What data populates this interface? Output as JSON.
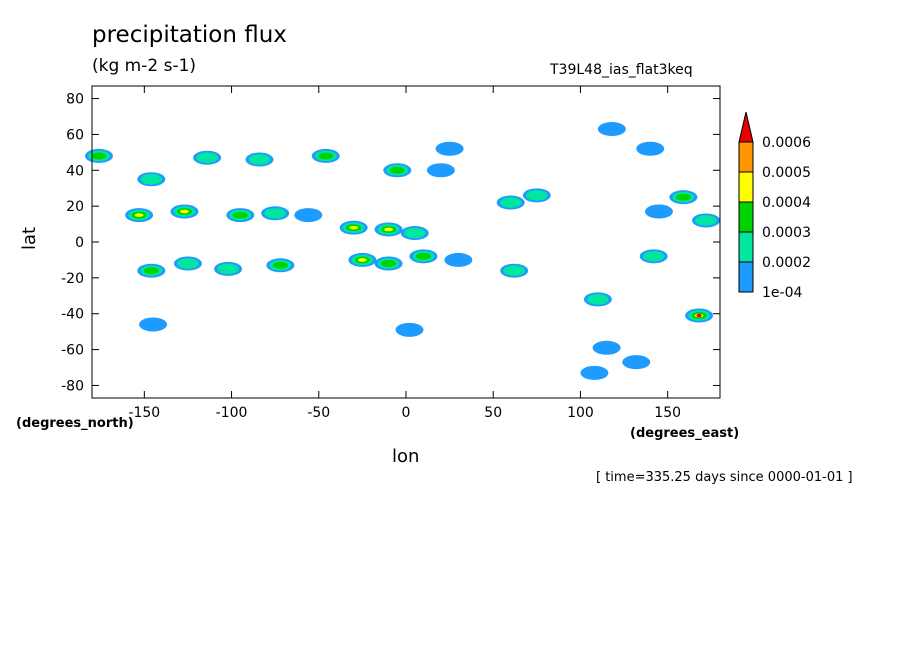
{
  "header": {
    "title": "precipitation flux",
    "units": "(kg m-2 s-1)",
    "run_name": "T39L48_ias_flat3keq",
    "timestamp": "[ time=335.25 days since 0000-01-01 ]"
  },
  "axes": {
    "ylabel": "lat",
    "xlabel": "lon",
    "y_units": "(degrees_north)",
    "x_units": "(degrees_east)"
  },
  "colors": {
    "c1": "#1e9bff",
    "c2": "#00e6a0",
    "c3": "#00d200",
    "c4": "#ffff00",
    "c5": "#ff9600",
    "c6": "#e60000"
  },
  "chart_data": {
    "type": "heatmap",
    "title": "precipitation flux",
    "subtitle": "(kg m-2 s-1)",
    "xlabel": "lon",
    "ylabel": "lat",
    "xlim": [
      -180,
      180
    ],
    "ylim": [
      -87,
      87
    ],
    "x_ticks": [
      -150,
      -100,
      -50,
      0,
      50,
      100,
      150
    ],
    "y_ticks": [
      -80,
      -60,
      -40,
      -20,
      0,
      20,
      40,
      60,
      80
    ],
    "colorbar_labels": [
      "1e-04",
      "0.0002",
      "0.0003",
      "0.0004",
      "0.0005",
      "0.0006"
    ],
    "blobs": [
      {
        "lon": -176,
        "lat": 48,
        "level": 3
      },
      {
        "lon": -146,
        "lat": 35,
        "level": 2
      },
      {
        "lon": -114,
        "lat": 47,
        "level": 2
      },
      {
        "lon": -84,
        "lat": 46,
        "level": 2
      },
      {
        "lon": -46,
        "lat": 48,
        "level": 3
      },
      {
        "lon": -5,
        "lat": 40,
        "level": 3
      },
      {
        "lon": 25,
        "lat": 52,
        "level": 1
      },
      {
        "lon": 20,
        "lat": 40,
        "level": 1
      },
      {
        "lon": 60,
        "lat": 22,
        "level": 2
      },
      {
        "lon": 75,
        "lat": 26,
        "level": 2
      },
      {
        "lon": 118,
        "lat": 63,
        "level": 1
      },
      {
        "lon": 140,
        "lat": 52,
        "level": 1
      },
      {
        "lon": 159,
        "lat": 25,
        "level": 3
      },
      {
        "lon": 172,
        "lat": 12,
        "level": 2
      },
      {
        "lon": -153,
        "lat": 15,
        "level": 4
      },
      {
        "lon": -127,
        "lat": 17,
        "level": 4
      },
      {
        "lon": -95,
        "lat": 15,
        "level": 3
      },
      {
        "lon": -75,
        "lat": 16,
        "level": 2
      },
      {
        "lon": -56,
        "lat": 15,
        "level": 1
      },
      {
        "lon": -30,
        "lat": 8,
        "level": 4
      },
      {
        "lon": -10,
        "lat": 7,
        "level": 4
      },
      {
        "lon": 5,
        "lat": 5,
        "level": 2
      },
      {
        "lon": 145,
        "lat": 17,
        "level": 1
      },
      {
        "lon": -146,
        "lat": -16,
        "level": 3
      },
      {
        "lon": -125,
        "lat": -12,
        "level": 2
      },
      {
        "lon": -102,
        "lat": -15,
        "level": 2
      },
      {
        "lon": -72,
        "lat": -13,
        "level": 3
      },
      {
        "lon": -25,
        "lat": -10,
        "level": 4
      },
      {
        "lon": -10,
        "lat": -12,
        "level": 3
      },
      {
        "lon": 10,
        "lat": -8,
        "level": 3
      },
      {
        "lon": 30,
        "lat": -10,
        "level": 1
      },
      {
        "lon": 62,
        "lat": -16,
        "level": 2
      },
      {
        "lon": 110,
        "lat": -32,
        "level": 2
      },
      {
        "lon": 142,
        "lat": -8,
        "level": 2
      },
      {
        "lon": 168,
        "lat": -41,
        "level": 6
      },
      {
        "lon": -145,
        "lat": -46,
        "level": 1
      },
      {
        "lon": 2,
        "lat": -49,
        "level": 1
      },
      {
        "lon": 115,
        "lat": -59,
        "level": 1
      },
      {
        "lon": 108,
        "lat": -73,
        "level": 1
      },
      {
        "lon": 132,
        "lat": -67,
        "level": 1
      }
    ]
  }
}
